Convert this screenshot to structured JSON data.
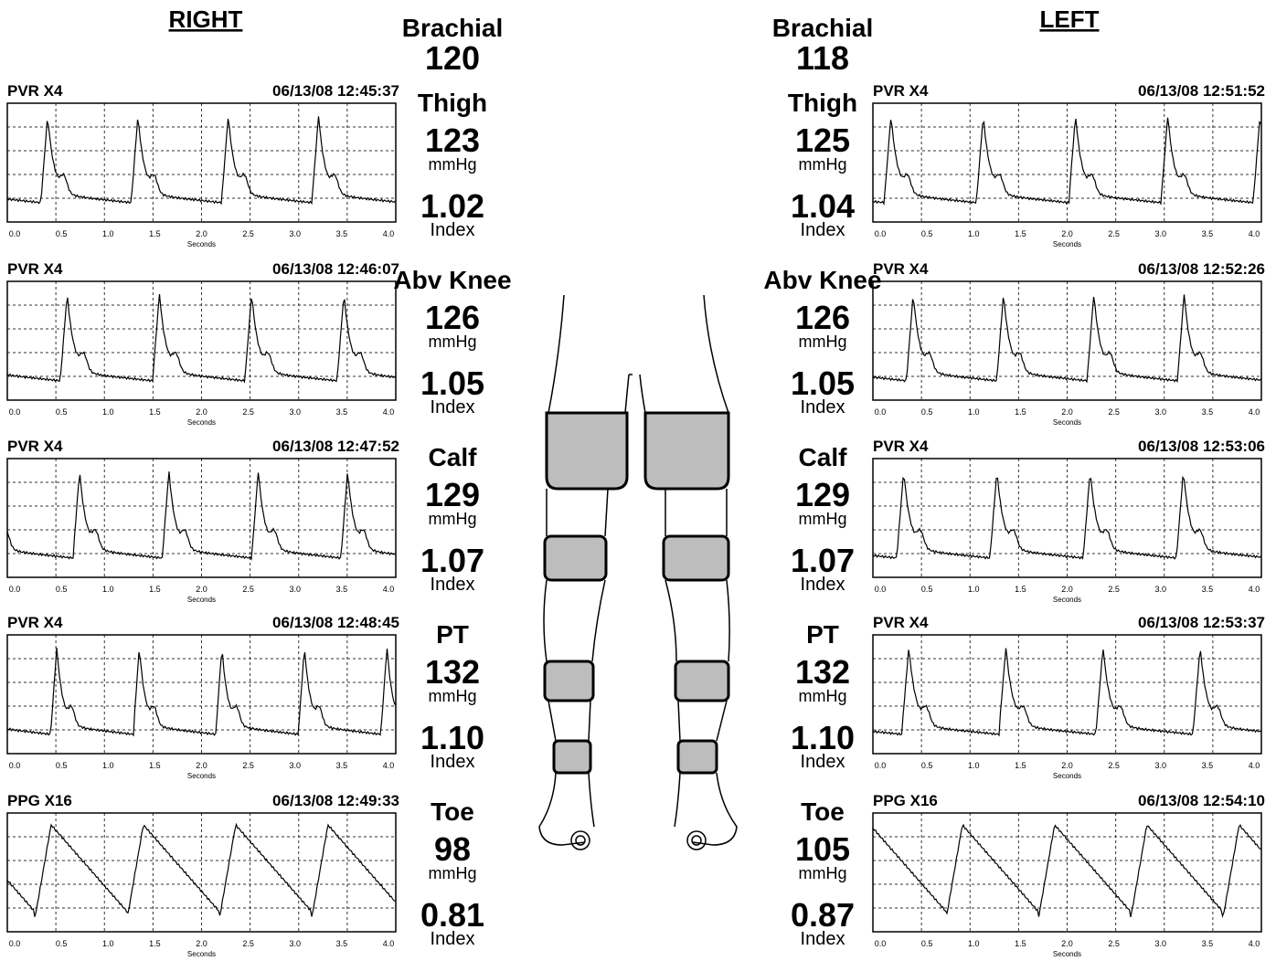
{
  "header": {
    "right": "RIGHT",
    "left": "LEFT"
  },
  "axis": {
    "ticks": [
      "0.0",
      "0.5",
      "1.0",
      "1.5",
      "2.0",
      "2.5",
      "3.0",
      "3.5",
      "4.0"
    ],
    "label": "Seconds"
  },
  "right": {
    "brachial": {
      "label": "Brachial",
      "value": "120"
    },
    "levels": [
      {
        "label": "Thigh",
        "pressure": "123",
        "unit": "mmHg",
        "index": "1.02",
        "index_label": "Index"
      },
      {
        "label": "Abv Knee",
        "pressure": "126",
        "unit": "mmHg",
        "index": "1.05",
        "index_label": "Index"
      },
      {
        "label": "Calf",
        "pressure": "129",
        "unit": "mmHg",
        "index": "1.07",
        "index_label": "Index"
      },
      {
        "label": "PT",
        "pressure": "132",
        "unit": "mmHg",
        "index": "1.10",
        "index_label": "Index"
      },
      {
        "label": "Toe",
        "pressure": "98",
        "unit": "mmHg",
        "index": "0.81",
        "index_label": "Index"
      }
    ],
    "waveforms": [
      {
        "mode": "PVR X4",
        "timestamp": "06/13/08 12:45:37"
      },
      {
        "mode": "PVR X4",
        "timestamp": "06/13/08 12:46:07"
      },
      {
        "mode": "PVR X4",
        "timestamp": "06/13/08 12:47:52"
      },
      {
        "mode": "PVR X4",
        "timestamp": "06/13/08 12:48:45"
      },
      {
        "mode": "PPG X16",
        "timestamp": "06/13/08 12:49:33"
      }
    ]
  },
  "left": {
    "brachial": {
      "label": "Brachial",
      "value": "118"
    },
    "levels": [
      {
        "label": "Thigh",
        "pressure": "125",
        "unit": "mmHg",
        "index": "1.04",
        "index_label": "Index"
      },
      {
        "label": "Abv Knee",
        "pressure": "126",
        "unit": "mmHg",
        "index": "1.05",
        "index_label": "Index"
      },
      {
        "label": "Calf",
        "pressure": "129",
        "unit": "mmHg",
        "index": "1.07",
        "index_label": "Index"
      },
      {
        "label": "PT",
        "pressure": "132",
        "unit": "mmHg",
        "index": "1.10",
        "index_label": "Index"
      },
      {
        "label": "Toe",
        "pressure": "105",
        "unit": "mmHg",
        "index": "0.87",
        "index_label": "Index"
      }
    ],
    "waveforms": [
      {
        "mode": "PVR X4",
        "timestamp": "06/13/08 12:51:52"
      },
      {
        "mode": "PVR X4",
        "timestamp": "06/13/08 12:52:26"
      },
      {
        "mode": "PVR X4",
        "timestamp": "06/13/08 12:53:06"
      },
      {
        "mode": "PVR X4",
        "timestamp": "06/13/08 12:53:37"
      },
      {
        "mode": "PPG X16",
        "timestamp": "06/13/08 12:54:10"
      }
    ]
  }
}
